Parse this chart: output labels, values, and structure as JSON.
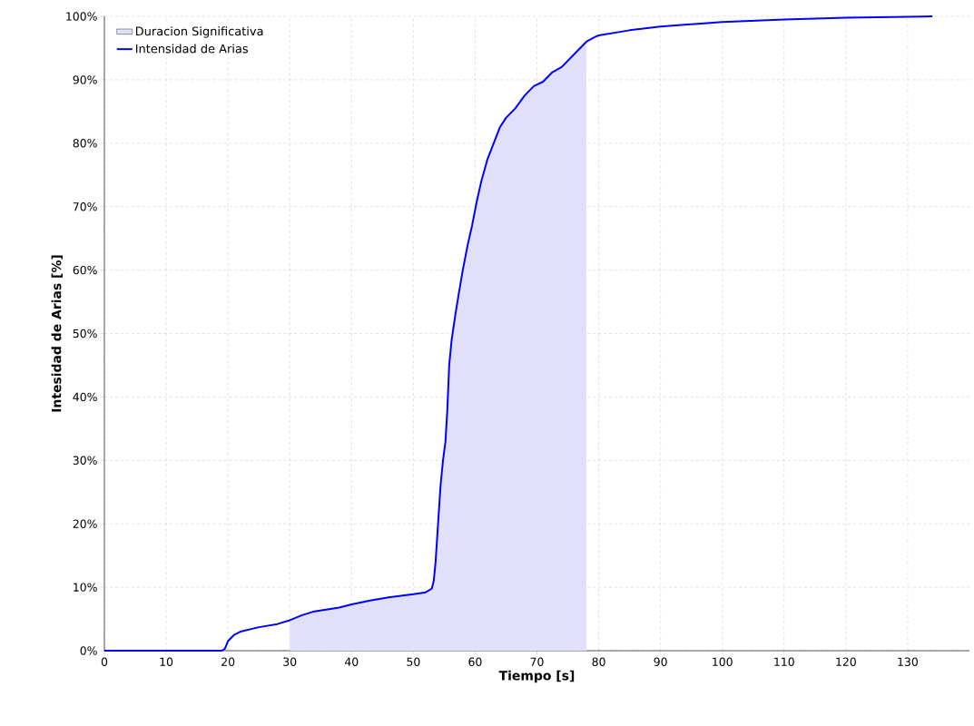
{
  "chart_data": {
    "type": "line",
    "xlabel": "Tiempo [s]",
    "ylabel": "Intesidad de Arias [%]",
    "xlim": [
      0,
      140
    ],
    "xticks": [
      0,
      10,
      20,
      30,
      40,
      50,
      60,
      70,
      80,
      90,
      100,
      110,
      120,
      130
    ],
    "ylim": [
      0,
      100
    ],
    "yticks": [
      {
        "value": 0,
        "label": "0%"
      },
      {
        "value": 10,
        "label": "10%"
      },
      {
        "value": 20,
        "label": "20%"
      },
      {
        "value": 30,
        "label": "30%"
      },
      {
        "value": 40,
        "label": "40%"
      },
      {
        "value": 50,
        "label": "50%"
      },
      {
        "value": 60,
        "label": "60%"
      },
      {
        "value": 70,
        "label": "70%"
      },
      {
        "value": 80,
        "label": "80%"
      },
      {
        "value": 90,
        "label": "90%"
      },
      {
        "value": 100,
        "label": "100%"
      }
    ],
    "grid": true,
    "legend": "top left",
    "series": [
      {
        "name": "Duracion Significativa",
        "type": "area",
        "color": "#e0e0fb",
        "x": [
          30,
          32,
          34,
          38,
          40,
          43,
          46,
          50,
          52,
          53,
          53.3,
          53.6,
          54,
          54.4,
          54.8,
          55.2,
          55.5,
          55.8,
          56.2,
          56.8,
          57.3,
          58,
          58.8,
          59.5,
          60.3,
          61,
          62,
          63,
          64,
          65,
          66.5,
          68,
          69.5,
          71,
          72.5,
          74,
          75.5,
          77,
          78
        ],
        "values": [
          4.8,
          5.6,
          6.2,
          6.8,
          7.3,
          7.9,
          8.4,
          8.9,
          9.2,
          9.8,
          11,
          14,
          20,
          26,
          30,
          33,
          38,
          45,
          49,
          53,
          56,
          60,
          64,
          67,
          71,
          74,
          77.5,
          80,
          82.5,
          84,
          85.5,
          87.5,
          89,
          89.7,
          91.2,
          92,
          93.5,
          95,
          96
        ]
      },
      {
        "name": "Intensidad de Arias",
        "color": "#0000ff",
        "x": [
          0,
          19,
          19.5,
          20,
          21,
          22,
          25,
          28,
          30,
          32,
          34,
          38,
          40,
          43,
          46,
          50,
          52,
          53,
          53.3,
          53.6,
          54,
          54.4,
          54.8,
          55.2,
          55.5,
          55.8,
          56.2,
          56.8,
          57.3,
          58,
          58.8,
          59.5,
          60.3,
          61,
          62,
          63,
          64,
          65,
          66.5,
          68,
          69.5,
          71,
          72.5,
          74,
          75.5,
          77,
          78,
          79.5,
          80,
          85,
          90,
          100,
          110,
          120,
          134
        ],
        "values": [
          0,
          0,
          0.3,
          1.5,
          2.5,
          3.0,
          3.7,
          4.2,
          4.8,
          5.6,
          6.2,
          6.8,
          7.3,
          7.9,
          8.4,
          8.9,
          9.2,
          9.8,
          11,
          14,
          20,
          26,
          30,
          33,
          38,
          45,
          49,
          53,
          56,
          60,
          64,
          67,
          71,
          74,
          77.5,
          80,
          82.5,
          84,
          85.5,
          87.5,
          89,
          89.7,
          91.2,
          92,
          93.5,
          95,
          96,
          96.8,
          97,
          97.8,
          98.4,
          99.1,
          99.5,
          99.8,
          100
        ]
      }
    ]
  }
}
